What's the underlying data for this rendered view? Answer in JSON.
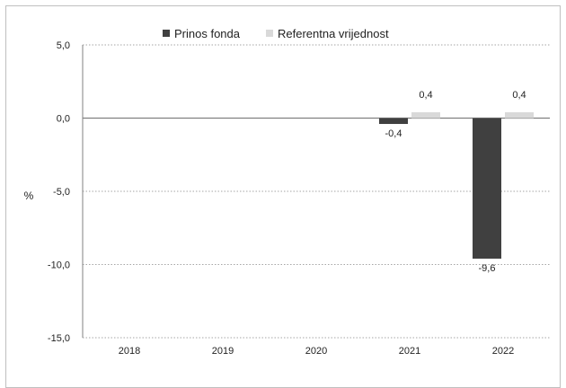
{
  "chart_data": {
    "type": "bar",
    "title": "",
    "xlabel": "",
    "ylabel": "%",
    "ylim": [
      -15,
      5
    ],
    "yticks": [
      5,
      0,
      -5,
      -10,
      -15
    ],
    "ytick_labels": [
      "5,0",
      "0,0",
      "-5,0",
      "-10,0",
      "-15,0"
    ],
    "grid": true,
    "legend_position": "top",
    "categories": [
      "2018",
      "2019",
      "2020",
      "2021",
      "2022"
    ],
    "series": [
      {
        "name": "Prinos fonda",
        "color": "#404040",
        "values": [
          null,
          null,
          null,
          -0.4,
          -9.6
        ],
        "labels": [
          "",
          "",
          "",
          "-0,4",
          "-9,6"
        ]
      },
      {
        "name": "Referentna vrijednost",
        "color": "#d9d9d9",
        "values": [
          null,
          null,
          null,
          0.4,
          0.4
        ],
        "labels": [
          "",
          "",
          "",
          "0,4",
          "0,4"
        ]
      }
    ]
  }
}
